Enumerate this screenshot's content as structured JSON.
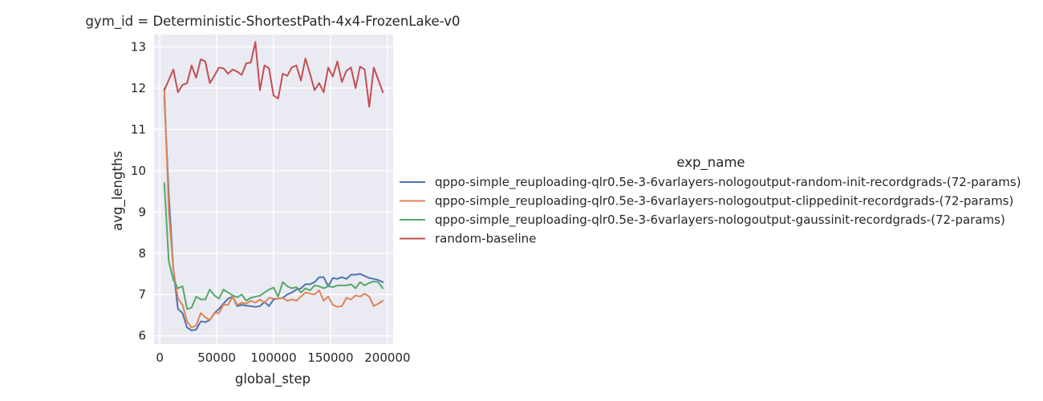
{
  "chart_data": {
    "type": "line",
    "title": "gym_id = Deterministic-ShortestPath-4x4-FrozenLake-v0",
    "xlabel": "global_step",
    "ylabel": "avg_lengths",
    "xlim": [
      -5000,
      205000
    ],
    "ylim": [
      5.8,
      13.3
    ],
    "xticks": [
      0,
      50000,
      100000,
      150000,
      200000
    ],
    "xtick_labels": [
      "0",
      "50000",
      "100000",
      "150000",
      "200000"
    ],
    "yticks": [
      6,
      7,
      8,
      9,
      10,
      11,
      12,
      13
    ],
    "ytick_labels": [
      "6",
      "7",
      "8",
      "9",
      "10",
      "11",
      "12",
      "13"
    ],
    "grid": true,
    "background": "#eaeaf2",
    "legend": {
      "title": "exp_name",
      "placement": "right"
    },
    "series": [
      {
        "name": "qppo-simple_reuploading-qlr0.5e-3-6varlayers-nologoutput-random-init-recordgrads-(72-params)",
        "color": "#4c72b0",
        "x": [
          4000,
          8000,
          12000,
          16000,
          20000,
          24000,
          28000,
          32000,
          36000,
          40000,
          44000,
          48000,
          52000,
          56000,
          60000,
          64000,
          68000,
          72000,
          76000,
          80000,
          84000,
          88000,
          92000,
          96000,
          100000,
          104000,
          108000,
          112000,
          116000,
          120000,
          124000,
          128000,
          132000,
          136000,
          140000,
          144000,
          148000,
          152000,
          156000,
          160000,
          164000,
          168000,
          172000,
          176000,
          180000,
          184000,
          188000,
          192000,
          196000
        ],
        "values": [
          11.8,
          9.4,
          7.6,
          6.65,
          6.55,
          6.2,
          6.13,
          6.15,
          6.35,
          6.33,
          6.38,
          6.55,
          6.65,
          6.78,
          6.9,
          6.95,
          6.72,
          6.75,
          6.73,
          6.72,
          6.7,
          6.72,
          6.82,
          6.72,
          6.88,
          6.9,
          6.92,
          7.0,
          7.05,
          7.12,
          7.15,
          7.25,
          7.25,
          7.3,
          7.42,
          7.42,
          7.2,
          7.4,
          7.38,
          7.42,
          7.38,
          7.48,
          7.48,
          7.5,
          7.45,
          7.4,
          7.38,
          7.35,
          7.3
        ]
      },
      {
        "name": "qppo-simple_reuploading-qlr0.5e-3-6varlayers-nologoutput-clippedinit-recordgrads-(72-params)",
        "color": "#dd8452",
        "x": [
          4000,
          8000,
          12000,
          16000,
          20000,
          24000,
          28000,
          32000,
          36000,
          40000,
          44000,
          48000,
          52000,
          56000,
          60000,
          64000,
          68000,
          72000,
          76000,
          80000,
          84000,
          88000,
          92000,
          96000,
          100000,
          104000,
          108000,
          112000,
          116000,
          120000,
          124000,
          128000,
          132000,
          136000,
          140000,
          144000,
          148000,
          152000,
          156000,
          160000,
          164000,
          168000,
          172000,
          176000,
          180000,
          184000,
          188000,
          192000,
          196000
        ],
        "values": [
          12.0,
          9.0,
          7.6,
          6.9,
          6.75,
          6.35,
          6.2,
          6.25,
          6.55,
          6.45,
          6.38,
          6.55,
          6.55,
          6.75,
          6.75,
          6.95,
          6.75,
          6.8,
          6.78,
          6.85,
          6.8,
          6.88,
          6.8,
          6.92,
          6.9,
          6.9,
          6.92,
          6.85,
          6.88,
          6.85,
          6.95,
          7.05,
          7.02,
          7.0,
          7.1,
          6.85,
          6.95,
          6.75,
          6.7,
          6.72,
          6.92,
          6.88,
          6.98,
          6.95,
          7.02,
          6.95,
          6.72,
          6.78,
          6.85
        ]
      },
      {
        "name": "qppo-simple_reuploading-qlr0.5e-3-6varlayers-nologoutput-gaussinit-recordgrads-(72-params)",
        "color": "#55a868",
        "x": [
          4000,
          8000,
          12000,
          16000,
          20000,
          24000,
          28000,
          32000,
          36000,
          40000,
          44000,
          48000,
          52000,
          56000,
          60000,
          64000,
          68000,
          72000,
          76000,
          80000,
          84000,
          88000,
          92000,
          96000,
          100000,
          104000,
          108000,
          112000,
          116000,
          120000,
          124000,
          128000,
          132000,
          136000,
          140000,
          144000,
          148000,
          152000,
          156000,
          160000,
          164000,
          168000,
          172000,
          176000,
          180000,
          184000,
          188000,
          192000,
          196000
        ],
        "values": [
          9.7,
          7.8,
          7.35,
          7.15,
          7.2,
          6.65,
          6.68,
          6.95,
          6.88,
          6.88,
          7.12,
          6.98,
          6.9,
          7.12,
          7.05,
          6.98,
          6.93,
          7.0,
          6.85,
          6.92,
          6.95,
          6.97,
          7.05,
          7.12,
          7.17,
          6.95,
          7.3,
          7.2,
          7.15,
          7.18,
          7.05,
          7.15,
          7.1,
          7.22,
          7.2,
          7.15,
          7.2,
          7.18,
          7.22,
          7.22,
          7.22,
          7.25,
          7.15,
          7.3,
          7.22,
          7.28,
          7.32,
          7.3,
          7.15
        ]
      },
      {
        "name": "random-baseline",
        "color": "#c44e52",
        "x": [
          4000,
          8000,
          12000,
          16000,
          20000,
          24000,
          28000,
          32000,
          36000,
          40000,
          44000,
          48000,
          52000,
          56000,
          60000,
          64000,
          68000,
          72000,
          76000,
          80000,
          84000,
          88000,
          92000,
          96000,
          100000,
          104000,
          108000,
          112000,
          116000,
          120000,
          124000,
          128000,
          132000,
          136000,
          140000,
          144000,
          148000,
          152000,
          156000,
          160000,
          164000,
          168000,
          172000,
          176000,
          180000,
          184000,
          188000,
          192000,
          196000
        ],
        "values": [
          11.95,
          12.2,
          12.45,
          11.9,
          12.08,
          12.12,
          12.55,
          12.25,
          12.7,
          12.65,
          12.12,
          12.3,
          12.5,
          12.48,
          12.35,
          12.45,
          12.4,
          12.32,
          12.6,
          12.62,
          13.12,
          11.95,
          12.55,
          12.48,
          11.82,
          11.75,
          12.35,
          12.3,
          12.5,
          12.55,
          12.18,
          12.72,
          12.35,
          11.95,
          12.12,
          11.9,
          12.5,
          12.28,
          12.65,
          12.15,
          12.42,
          12.5,
          12.0,
          12.52,
          12.45,
          11.55,
          12.5,
          12.2,
          11.9
        ]
      }
    ]
  }
}
